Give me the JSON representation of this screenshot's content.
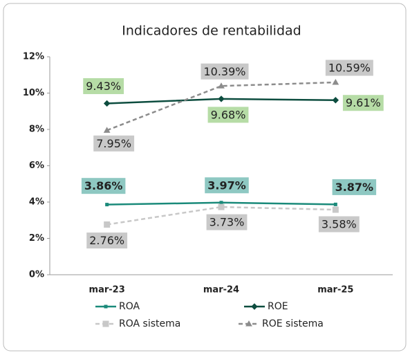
{
  "chart_data": {
    "type": "line",
    "title": "Indicadores de rentabilidad",
    "categories": [
      "mar-23",
      "mar-24",
      "mar-25"
    ],
    "series": [
      {
        "name": "ROA",
        "color": "#1a8a7a",
        "dashed": false,
        "marker": "plus",
        "label_color": "#8ec8c2",
        "label_bold": true,
        "values": [
          3.86,
          3.97,
          3.87
        ],
        "value_labels": [
          "3.86%",
          "3.97%",
          "3.87%"
        ]
      },
      {
        "name": "ROE",
        "color": "#0d4d3f",
        "dashed": false,
        "marker": "diamond",
        "label_color": "#b6dca6",
        "label_bold": false,
        "values": [
          9.43,
          9.68,
          9.61
        ],
        "value_labels": [
          "9.43%",
          "9.68%",
          "9.61%"
        ]
      },
      {
        "name": "ROA sistema",
        "color": "#c8c8c8",
        "dashed": true,
        "marker": "square",
        "label_color": "#c9c9c9",
        "label_bold": false,
        "values": [
          2.76,
          3.73,
          3.58
        ],
        "value_labels": [
          "2.76%",
          "3.73%",
          "3.58%"
        ]
      },
      {
        "name": "ROE sistema",
        "color": "#8c8c8c",
        "dashed": true,
        "marker": "triangle",
        "label_color": "#c9c9c9",
        "label_bold": false,
        "values": [
          7.95,
          10.39,
          10.59
        ],
        "value_labels": [
          "7.95%",
          "10.39%",
          "10.59%"
        ]
      }
    ],
    "ylim": [
      0,
      12
    ],
    "yticks": [
      {
        "value": 0,
        "label": "0%"
      },
      {
        "value": 2,
        "label": "2%"
      },
      {
        "value": 4,
        "label": "4%"
      },
      {
        "value": 6,
        "label": "6%"
      },
      {
        "value": 8,
        "label": "8%"
      },
      {
        "value": 10,
        "label": "10%"
      },
      {
        "value": 12,
        "label": "12%"
      }
    ],
    "grid": false,
    "legend": "bottom"
  }
}
